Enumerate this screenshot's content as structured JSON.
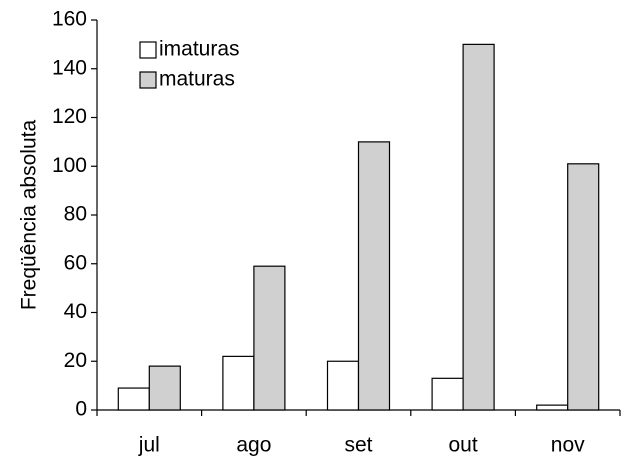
{
  "chart_data": {
    "type": "bar",
    "y_label": "Freqüência absoluta",
    "categories": [
      "jul",
      "ago",
      "set",
      "out",
      "nov"
    ],
    "series": [
      {
        "name": "imaturas",
        "color": "#ffffff",
        "values": [
          9,
          22,
          20,
          13,
          2
        ]
      },
      {
        "name": "maturas",
        "color": "#d0d0d0",
        "values": [
          18,
          59,
          110,
          150,
          101
        ]
      }
    ],
    "ylim": [
      0,
      160
    ],
    "yticks": [
      0,
      20,
      40,
      60,
      80,
      100,
      120,
      140,
      160
    ],
    "grid": false,
    "legend": "top-left"
  }
}
